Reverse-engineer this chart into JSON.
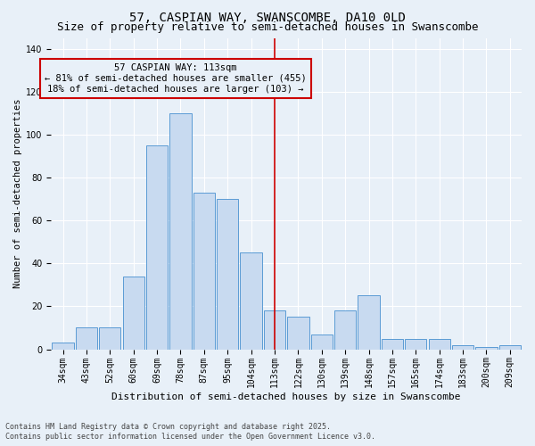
{
  "title": "57, CASPIAN WAY, SWANSCOMBE, DA10 0LD",
  "subtitle": "Size of property relative to semi-detached houses in Swanscombe",
  "xlabel": "Distribution of semi-detached houses by size in Swanscombe",
  "ylabel": "Number of semi-detached properties",
  "categories": [
    "34sqm",
    "43sqm",
    "52sqm",
    "60sqm",
    "69sqm",
    "78sqm",
    "87sqm",
    "95sqm",
    "104sqm",
    "113sqm",
    "122sqm",
    "130sqm",
    "139sqm",
    "148sqm",
    "157sqm",
    "165sqm",
    "174sqm",
    "183sqm",
    "200sqm",
    "209sqm"
  ],
  "values": [
    3,
    10,
    10,
    34,
    95,
    110,
    73,
    70,
    45,
    18,
    15,
    7,
    18,
    25,
    5,
    5,
    5,
    2,
    1,
    2
  ],
  "bar_color": "#c8daf0",
  "bar_edge_color": "#5b9bd5",
  "vline_x_index": 9,
  "vline_color": "#cc0000",
  "annotation_title": "57 CASPIAN WAY: 113sqm",
  "annotation_line1": "← 81% of semi-detached houses are smaller (455)",
  "annotation_line2": "18% of semi-detached houses are larger (103) →",
  "annotation_box_color": "#cc0000",
  "ylim": [
    0,
    145
  ],
  "yticks": [
    0,
    20,
    40,
    60,
    80,
    100,
    120,
    140
  ],
  "footnote1": "Contains HM Land Registry data © Crown copyright and database right 2025.",
  "footnote2": "Contains public sector information licensed under the Open Government Licence v3.0.",
  "bg_color": "#e8f0f8",
  "title_fontsize": 10,
  "subtitle_fontsize": 9,
  "annotation_fontsize": 7.5,
  "tick_fontsize": 7,
  "ylabel_fontsize": 7.5,
  "xlabel_fontsize": 8
}
